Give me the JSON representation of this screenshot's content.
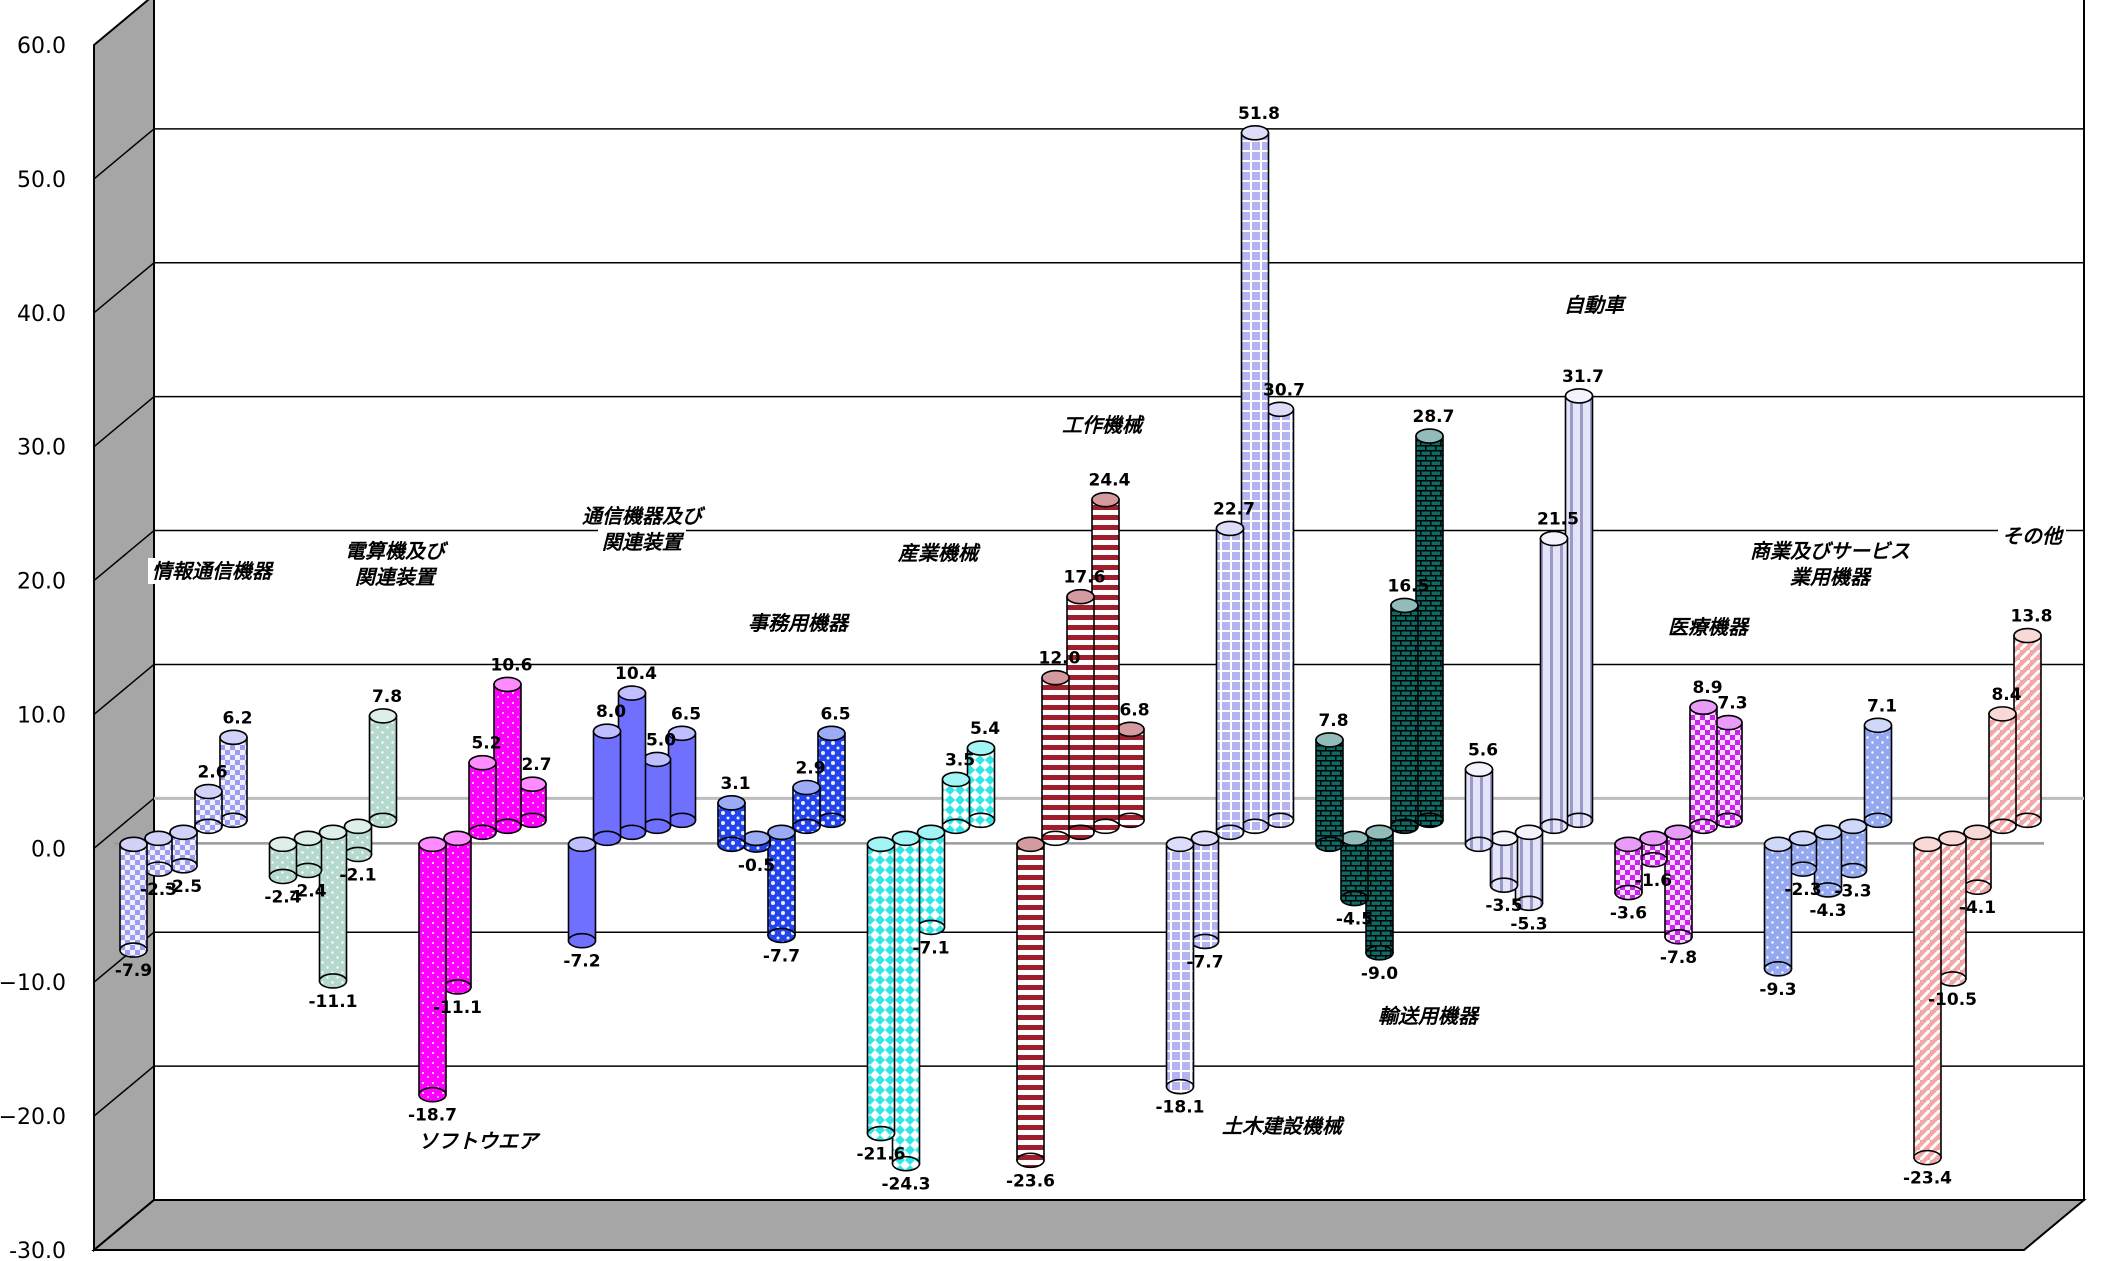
{
  "chart_data": {
    "type": "bar",
    "ylim": [
      -30,
      60
    ],
    "y_ticks": [
      "60.0",
      "50.0",
      "40.0",
      "30.0",
      "20.0",
      "10.0",
      "0.0",
      "−10.0",
      "−20.0",
      "-30.0"
    ],
    "grid": true,
    "groups": [
      {
        "label": [
          "情報通信機器"
        ],
        "values": [
          -7.9,
          -2.3,
          -2.5,
          2.6,
          6.2
        ],
        "value_labels": [
          "-7.9",
          "-2.3",
          "-2.5",
          "2.6",
          "6.2"
        ],
        "color": "#9c9cf0",
        "pattern": "checker"
      },
      {
        "label": [
          "電算機及び",
          "関連装置"
        ],
        "values": [
          -2.4,
          -2.4,
          -11.1,
          -2.1,
          7.8
        ],
        "value_labels": [
          "-2.4",
          "-2.4",
          "-11.1",
          "-2.1",
          "7.8"
        ],
        "color": "#b5d9cf",
        "pattern": "dots"
      },
      {
        "label": [
          "ソフトウエア"
        ],
        "values": [
          -18.7,
          -11.1,
          5.2,
          10.6,
          2.7
        ],
        "value_labels": [
          "-18.7",
          "-11.1",
          "5.2",
          "10.6",
          "2.7"
        ],
        "color": "#ff00ff",
        "pattern": "sparse"
      },
      {
        "label": [
          "通信機器及び",
          "関連装置"
        ],
        "values": [
          -7.2,
          8.0,
          10.4,
          5.0,
          6.5
        ],
        "value_labels": [
          "-7.2",
          "8.0",
          "10.4",
          "5.0",
          "6.5"
        ],
        "color": "#7070ff",
        "pattern": "none"
      },
      {
        "label": [
          "事務用機器"
        ],
        "values": [
          3.1,
          -0.5,
          -7.7,
          2.9,
          6.5
        ],
        "value_labels": [
          "3.1",
          "-0.5",
          "-7.7",
          "2.9",
          "6.5"
        ],
        "color": "#2244ee",
        "pattern": "blotch"
      },
      {
        "label": [
          "産業機械"
        ],
        "values": [
          -21.6,
          -24.3,
          -7.1,
          3.5,
          5.4
        ],
        "value_labels": [
          "-21.6",
          "-24.3",
          "-7.1",
          "3.5",
          "5.4"
        ],
        "color": "#33e6e6",
        "pattern": "diamond"
      },
      {
        "label": [
          "工作機械"
        ],
        "values": [
          -23.6,
          12.0,
          17.6,
          24.4,
          6.8
        ],
        "value_labels": [
          "-23.6",
          "12.0",
          "17.6",
          "24.4",
          "6.8"
        ],
        "color": "#a01e2c",
        "pattern": "hstripes"
      },
      {
        "label": [
          "土木建設機械"
        ],
        "values": [
          -18.1,
          -7.7,
          22.7,
          51.8,
          30.7
        ],
        "value_labels": [
          "-18.1",
          "-7.7",
          "22.7",
          "51.8",
          "30.7"
        ],
        "color": "#b4b4f2",
        "pattern": "grid"
      },
      {
        "label": [
          "輸送用機器"
        ],
        "values": [
          7.8,
          -4.5,
          -9.0,
          16.5,
          28.7
        ],
        "value_labels": [
          "7.8",
          "-4.5",
          "-9.0",
          "16.5",
          "28.7"
        ],
        "color": "#0b6b66",
        "pattern": "brick"
      },
      {
        "label": [
          "自動車"
        ],
        "values": [
          5.6,
          -3.5,
          -5.3,
          21.5,
          31.7
        ],
        "value_labels": [
          "5.6",
          "-3.5",
          "-5.3",
          "21.5",
          "31.7"
        ],
        "color": "#e4e4f8",
        "pattern": "vstripes"
      },
      {
        "label": [
          "医療機器"
        ],
        "values": [
          -3.6,
          -1.6,
          -7.8,
          8.9,
          7.3
        ],
        "value_labels": [
          "-3.6",
          "-1.6",
          "-7.8",
          "8.9",
          "7.3"
        ],
        "color": "#cc22ee",
        "pattern": "checker"
      },
      {
        "label": [
          "商業及びサービス",
          "業用機器"
        ],
        "values": [
          -9.3,
          -2.3,
          -4.3,
          -3.3,
          7.1
        ],
        "value_labels": [
          "-9.3",
          "-2.3",
          "-4.3",
          "-3.3",
          "7.1"
        ],
        "color": "#94a8f0",
        "pattern": "dots"
      },
      {
        "label": [
          "その他"
        ],
        "values": [
          -23.4,
          -10.5,
          -4.1,
          8.4,
          13.8
        ],
        "value_labels": [
          "-23.4",
          "-10.5",
          "-4.1",
          "8.4",
          "13.8"
        ],
        "color": "#f2a8a8",
        "pattern": "diag"
      }
    ]
  }
}
